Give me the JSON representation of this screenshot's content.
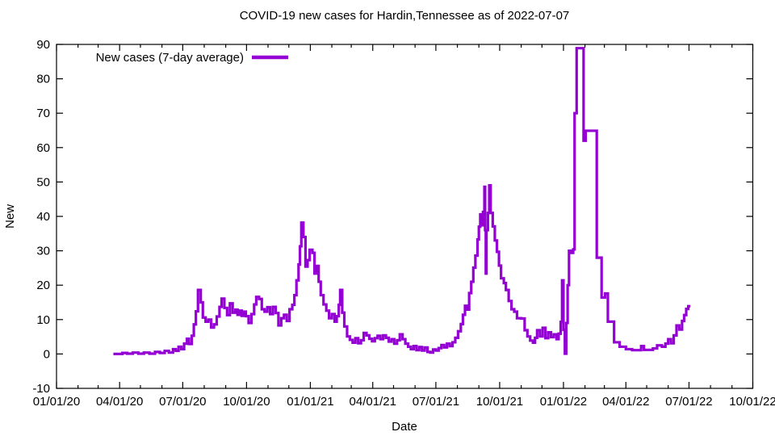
{
  "chart_data": {
    "type": "line",
    "style": "steps",
    "title": "COVID-19 new cases for Hardin,Tennessee as of 2022-07-07",
    "xlabel": "Date",
    "ylabel": "New",
    "legend_label": "New cases (7-day average)",
    "legend_position": "top-left-inside",
    "grid": false,
    "line_color": "#9400d3",
    "axis_color": "#000000",
    "background_color": "#ffffff",
    "ylim": [
      -10,
      90
    ],
    "xlim": [
      "2020-01-01",
      "2022-10-01"
    ],
    "y_ticks": [
      -10,
      0,
      10,
      20,
      30,
      40,
      50,
      60,
      70,
      80,
      90
    ],
    "x_tick_labels": [
      "01/01/20",
      "04/01/20",
      "07/01/20",
      "10/01/20",
      "01/01/21",
      "04/01/21",
      "07/01/21",
      "10/01/21",
      "01/01/22",
      "04/01/22",
      "07/01/22",
      "10/01/22"
    ],
    "x_minor_tick_unit": "month",
    "series": [
      {
        "name": "New cases (7-day average)",
        "points": [
          [
            "2020-03-23",
            0.0
          ],
          [
            "2020-04-05",
            0.3
          ],
          [
            "2020-04-12",
            0.1
          ],
          [
            "2020-04-20",
            0.4
          ],
          [
            "2020-04-28",
            0.1
          ],
          [
            "2020-05-06",
            0.4
          ],
          [
            "2020-05-14",
            0.1
          ],
          [
            "2020-05-22",
            0.6
          ],
          [
            "2020-05-29",
            0.3
          ],
          [
            "2020-06-05",
            0.9
          ],
          [
            "2020-06-11",
            0.4
          ],
          [
            "2020-06-17",
            1.4
          ],
          [
            "2020-06-21",
            0.9
          ],
          [
            "2020-06-25",
            2.1
          ],
          [
            "2020-06-29",
            1.4
          ],
          [
            "2020-07-03",
            3.0
          ],
          [
            "2020-07-07",
            4.4
          ],
          [
            "2020-07-10",
            2.9
          ],
          [
            "2020-07-14",
            5.3
          ],
          [
            "2020-07-17",
            8.6
          ],
          [
            "2020-07-20",
            12.4
          ],
          [
            "2020-07-23",
            18.6
          ],
          [
            "2020-07-27",
            15.0
          ],
          [
            "2020-07-30",
            10.6
          ],
          [
            "2020-08-03",
            9.4
          ],
          [
            "2020-08-07",
            10.0
          ],
          [
            "2020-08-11",
            7.7
          ],
          [
            "2020-08-15",
            8.6
          ],
          [
            "2020-08-19",
            10.9
          ],
          [
            "2020-08-23",
            13.7
          ],
          [
            "2020-08-26",
            16.1
          ],
          [
            "2020-08-30",
            13.4
          ],
          [
            "2020-09-03",
            11.3
          ],
          [
            "2020-09-07",
            14.7
          ],
          [
            "2020-09-11",
            12.0
          ],
          [
            "2020-09-15",
            12.9
          ],
          [
            "2020-09-18",
            11.4
          ],
          [
            "2020-09-21",
            12.6
          ],
          [
            "2020-09-24",
            11.1
          ],
          [
            "2020-09-27",
            12.3
          ],
          [
            "2020-09-30",
            11.0
          ],
          [
            "2020-10-04",
            9.0
          ],
          [
            "2020-10-08",
            11.6
          ],
          [
            "2020-10-12",
            14.4
          ],
          [
            "2020-10-15",
            16.6
          ],
          [
            "2020-10-19",
            16.0
          ],
          [
            "2020-10-23",
            13.0
          ],
          [
            "2020-10-27",
            12.3
          ],
          [
            "2020-10-31",
            13.6
          ],
          [
            "2020-11-04",
            11.6
          ],
          [
            "2020-11-08",
            13.7
          ],
          [
            "2020-11-12",
            11.9
          ],
          [
            "2020-11-16",
            8.3
          ],
          [
            "2020-11-20",
            10.4
          ],
          [
            "2020-11-24",
            11.4
          ],
          [
            "2020-11-28",
            9.6
          ],
          [
            "2020-12-02",
            13.0
          ],
          [
            "2020-12-06",
            14.3
          ],
          [
            "2020-12-09",
            17.1
          ],
          [
            "2020-12-12",
            21.4
          ],
          [
            "2020-12-15",
            26.0
          ],
          [
            "2020-12-17",
            31.3
          ],
          [
            "2020-12-19",
            38.2
          ],
          [
            "2020-12-22",
            34.0
          ],
          [
            "2020-12-25",
            25.4
          ],
          [
            "2020-12-28",
            27.3
          ],
          [
            "2020-12-31",
            30.3
          ],
          [
            "2021-01-04",
            29.4
          ],
          [
            "2021-01-07",
            23.4
          ],
          [
            "2021-01-10",
            25.6
          ],
          [
            "2021-01-13",
            21.0
          ],
          [
            "2021-01-16",
            17.1
          ],
          [
            "2021-01-20",
            14.4
          ],
          [
            "2021-01-24",
            12.6
          ],
          [
            "2021-01-28",
            10.4
          ],
          [
            "2021-02-01",
            11.6
          ],
          [
            "2021-02-05",
            9.4
          ],
          [
            "2021-02-08",
            11.0
          ],
          [
            "2021-02-11",
            14.3
          ],
          [
            "2021-02-13",
            18.6
          ],
          [
            "2021-02-16",
            12.0
          ],
          [
            "2021-02-19",
            8.0
          ],
          [
            "2021-02-23",
            5.1
          ],
          [
            "2021-02-27",
            4.1
          ],
          [
            "2021-03-03",
            3.3
          ],
          [
            "2021-03-07",
            4.6
          ],
          [
            "2021-03-11",
            3.1
          ],
          [
            "2021-03-15",
            4.0
          ],
          [
            "2021-03-19",
            6.1
          ],
          [
            "2021-03-23",
            5.4
          ],
          [
            "2021-03-27",
            4.4
          ],
          [
            "2021-03-31",
            3.7
          ],
          [
            "2021-04-04",
            4.6
          ],
          [
            "2021-04-08",
            5.3
          ],
          [
            "2021-04-12",
            4.3
          ],
          [
            "2021-04-16",
            5.4
          ],
          [
            "2021-04-20",
            4.7
          ],
          [
            "2021-04-24",
            3.6
          ],
          [
            "2021-04-28",
            4.3
          ],
          [
            "2021-05-02",
            3.0
          ],
          [
            "2021-05-06",
            4.0
          ],
          [
            "2021-05-10",
            5.7
          ],
          [
            "2021-05-14",
            4.3
          ],
          [
            "2021-05-18",
            3.0
          ],
          [
            "2021-05-22",
            2.1
          ],
          [
            "2021-05-26",
            1.4
          ],
          [
            "2021-05-30",
            2.3
          ],
          [
            "2021-06-03",
            1.1
          ],
          [
            "2021-06-07",
            2.0
          ],
          [
            "2021-06-11",
            1.0
          ],
          [
            "2021-06-15",
            1.9
          ],
          [
            "2021-06-19",
            0.6
          ],
          [
            "2021-06-23",
            0.4
          ],
          [
            "2021-06-27",
            1.3
          ],
          [
            "2021-07-01",
            1.0
          ],
          [
            "2021-07-05",
            1.7
          ],
          [
            "2021-07-09",
            2.6
          ],
          [
            "2021-07-13",
            1.9
          ],
          [
            "2021-07-17",
            3.0
          ],
          [
            "2021-07-21",
            2.3
          ],
          [
            "2021-07-25",
            3.4
          ],
          [
            "2021-07-29",
            4.7
          ],
          [
            "2021-08-02",
            6.6
          ],
          [
            "2021-08-06",
            8.7
          ],
          [
            "2021-08-09",
            11.4
          ],
          [
            "2021-08-12",
            14.0
          ],
          [
            "2021-08-15",
            12.9
          ],
          [
            "2021-08-18",
            17.7
          ],
          [
            "2021-08-21",
            21.0
          ],
          [
            "2021-08-24",
            25.1
          ],
          [
            "2021-08-27",
            28.6
          ],
          [
            "2021-08-30",
            33.3
          ],
          [
            "2021-09-01",
            37.0
          ],
          [
            "2021-09-03",
            40.6
          ],
          [
            "2021-09-05",
            37.4
          ],
          [
            "2021-09-07",
            41.3
          ],
          [
            "2021-09-09",
            48.6
          ],
          [
            "2021-09-10",
            36.0
          ],
          [
            "2021-09-11",
            23.4
          ],
          [
            "2021-09-12",
            36.0
          ],
          [
            "2021-09-14",
            41.0
          ],
          [
            "2021-09-16",
            49.0
          ],
          [
            "2021-09-18",
            41.0
          ],
          [
            "2021-09-21",
            37.1
          ],
          [
            "2021-09-24",
            33.0
          ],
          [
            "2021-09-27",
            29.7
          ],
          [
            "2021-09-30",
            25.7
          ],
          [
            "2021-10-03",
            22.0
          ],
          [
            "2021-10-07",
            20.6
          ],
          [
            "2021-10-10",
            18.6
          ],
          [
            "2021-10-14",
            15.4
          ],
          [
            "2021-10-18",
            13.0
          ],
          [
            "2021-10-22",
            12.3
          ],
          [
            "2021-10-26",
            10.4
          ],
          [
            "2021-11-01",
            10.3
          ],
          [
            "2021-11-06",
            6.9
          ],
          [
            "2021-11-10",
            5.1
          ],
          [
            "2021-11-14",
            3.9
          ],
          [
            "2021-11-18",
            3.3
          ],
          [
            "2021-11-21",
            4.7
          ],
          [
            "2021-11-24",
            6.9
          ],
          [
            "2021-11-28",
            5.1
          ],
          [
            "2021-12-02",
            7.6
          ],
          [
            "2021-12-06",
            4.6
          ],
          [
            "2021-12-10",
            6.3
          ],
          [
            "2021-12-14",
            4.9
          ],
          [
            "2021-12-18",
            5.7
          ],
          [
            "2021-12-22",
            4.3
          ],
          [
            "2021-12-25",
            5.9
          ],
          [
            "2021-12-28",
            9.3
          ],
          [
            "2021-12-30",
            21.4
          ],
          [
            "2022-01-01",
            7.0
          ],
          [
            "2022-01-03",
            0.1
          ],
          [
            "2022-01-05",
            9.0
          ],
          [
            "2022-01-07",
            20.0
          ],
          [
            "2022-01-09",
            30.0
          ],
          [
            "2022-01-12",
            29.4
          ],
          [
            "2022-01-15",
            30.4
          ],
          [
            "2022-01-17",
            70.0
          ],
          [
            "2022-01-20",
            88.9
          ],
          [
            "2022-01-30",
            62.0
          ],
          [
            "2022-02-02",
            64.9
          ],
          [
            "2022-02-18",
            28.0
          ],
          [
            "2022-02-25",
            16.4
          ],
          [
            "2022-03-02",
            17.6
          ],
          [
            "2022-03-06",
            9.4
          ],
          [
            "2022-03-15",
            3.4
          ],
          [
            "2022-03-23",
            2.1
          ],
          [
            "2022-04-01",
            1.4
          ],
          [
            "2022-04-10",
            1.1
          ],
          [
            "2022-04-23",
            2.3
          ],
          [
            "2022-04-27",
            1.2
          ],
          [
            "2022-05-10",
            1.6
          ],
          [
            "2022-05-16",
            2.5
          ],
          [
            "2022-05-23",
            2.1
          ],
          [
            "2022-05-28",
            3.0
          ],
          [
            "2022-06-01",
            4.3
          ],
          [
            "2022-06-05",
            3.1
          ],
          [
            "2022-06-09",
            5.4
          ],
          [
            "2022-06-13",
            8.3
          ],
          [
            "2022-06-17",
            7.1
          ],
          [
            "2022-06-21",
            9.6
          ],
          [
            "2022-06-24",
            11.3
          ],
          [
            "2022-06-27",
            13.1
          ],
          [
            "2022-06-30",
            13.9
          ],
          [
            "2022-07-03",
            13.9
          ]
        ]
      }
    ]
  }
}
